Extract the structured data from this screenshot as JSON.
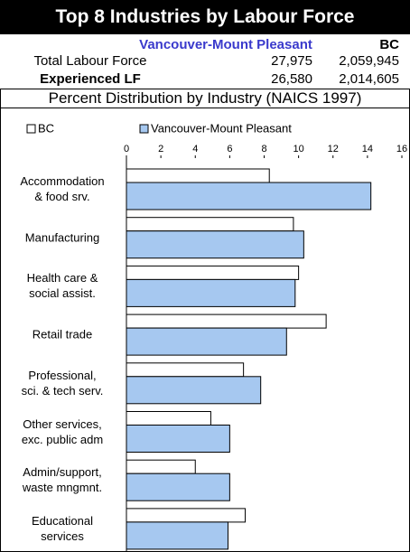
{
  "header": {
    "title": "Top 8 Industries by Labour Force"
  },
  "table": {
    "columns": [
      "Vancouver-Mount Pleasant",
      "BC"
    ],
    "rows": [
      [
        "Total Labour Force",
        "27,975",
        "2,059,945"
      ],
      [
        "Experienced LF",
        "26,580",
        "2,014,605"
      ]
    ]
  },
  "chart_data": {
    "type": "hbar",
    "title": "Percent Distribution by Industry (NAICS 1997)",
    "categories": [
      "Accommodation\n& food srv.",
      "Manufacturing",
      "Health care &\nsocial assist.",
      "Retail trade",
      "Professional,\nsci. & tech serv.",
      "Other services,\nexc. public adm",
      "Admin/support,\nwaste mngmnt.",
      "Educational\nservices"
    ],
    "series": [
      {
        "name": "BC",
        "color": "#ffffff",
        "values": [
          8.3,
          9.7,
          10.0,
          11.6,
          6.8,
          4.9,
          4.0,
          6.9
        ]
      },
      {
        "name": "Vancouver-Mount Pleasant",
        "color": "#a6c8f0",
        "values": [
          14.2,
          10.3,
          9.8,
          9.3,
          7.8,
          6.0,
          6.0,
          5.9
        ]
      }
    ],
    "xlim": [
      0,
      16
    ],
    "xticks": [
      0,
      2,
      4,
      6,
      8,
      10,
      12,
      14,
      16
    ],
    "legend": "top"
  }
}
